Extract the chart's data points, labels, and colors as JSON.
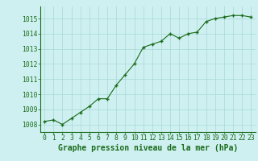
{
  "x": [
    0,
    1,
    2,
    3,
    4,
    5,
    6,
    7,
    8,
    9,
    10,
    11,
    12,
    13,
    14,
    15,
    16,
    17,
    18,
    19,
    20,
    21,
    22,
    23
  ],
  "y": [
    1008.2,
    1008.3,
    1008.0,
    1008.4,
    1008.8,
    1009.2,
    1009.7,
    1009.7,
    1010.6,
    1011.3,
    1012.0,
    1013.1,
    1013.3,
    1013.5,
    1014.0,
    1013.7,
    1014.0,
    1014.1,
    1014.8,
    1015.0,
    1015.1,
    1015.2,
    1015.2,
    1015.1
  ],
  "line_color": "#1a6b1a",
  "marker_color": "#1a6b1a",
  "bg_color": "#cef0f0",
  "grid_color": "#a8d8d8",
  "xlabel": "Graphe pression niveau de la mer (hPa)",
  "xlabel_color": "#1a6b1a",
  "tick_color": "#1a6b1a",
  "ylim": [
    1007.5,
    1015.8
  ],
  "yticks": [
    1008,
    1009,
    1010,
    1011,
    1012,
    1013,
    1014,
    1015
  ],
  "xticks": [
    0,
    1,
    2,
    3,
    4,
    5,
    6,
    7,
    8,
    9,
    10,
    11,
    12,
    13,
    14,
    15,
    16,
    17,
    18,
    19,
    20,
    21,
    22,
    23
  ],
  "font_size_label": 7.0,
  "font_size_tick": 5.8
}
